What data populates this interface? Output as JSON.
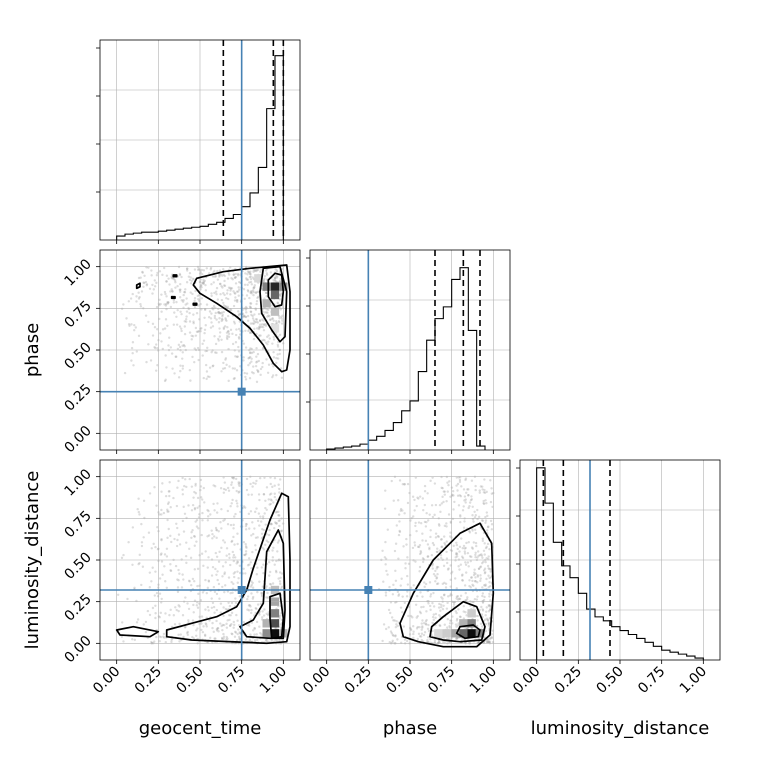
{
  "chart_data": {
    "type": "corner",
    "parameters": [
      "geocent_time",
      "phase",
      "luminosity_distance"
    ],
    "axis_range": [
      -0.1,
      1.1
    ],
    "ticks": [
      "0.00",
      "0.25",
      "0.50",
      "0.75",
      "1.00"
    ],
    "truths": {
      "geocent_time": 0.75,
      "phase": 0.25,
      "luminosity_distance": 0.32
    },
    "colors": {
      "truth": "#4682b4",
      "contour": "#000000",
      "grid": "#b0b0b0",
      "points": "#9e9e9e"
    },
    "grid": true,
    "diagonal": [
      {
        "parameter": "geocent_time",
        "bin_edges": [
          0.0,
          0.05,
          0.1,
          0.15,
          0.2,
          0.25,
          0.3,
          0.35,
          0.4,
          0.45,
          0.5,
          0.55,
          0.6,
          0.65,
          0.7,
          0.75,
          0.8,
          0.85,
          0.9,
          0.95,
          1.0
        ],
        "counts": [
          0.02,
          0.03,
          0.035,
          0.04,
          0.04,
          0.045,
          0.05,
          0.055,
          0.06,
          0.065,
          0.07,
          0.08,
          0.09,
          0.11,
          0.13,
          0.17,
          0.24,
          0.37,
          0.67,
          0.94
        ],
        "ylim": [
          0,
          1.0
        ],
        "quantiles": [
          0.64,
          0.94,
          1.0
        ]
      },
      {
        "parameter": "phase",
        "bin_edges": [
          0.0,
          0.05,
          0.1,
          0.15,
          0.2,
          0.25,
          0.3,
          0.35,
          0.4,
          0.45,
          0.5,
          0.55,
          0.6,
          0.65,
          0.7,
          0.75,
          0.8,
          0.85,
          0.9,
          0.95
        ],
        "counts": [
          0.005,
          0.01,
          0.015,
          0.02,
          0.03,
          0.05,
          0.07,
          0.1,
          0.14,
          0.2,
          0.25,
          0.4,
          0.56,
          0.67,
          0.73,
          0.87,
          0.93,
          0.61,
          0.02
        ],
        "ylim": [
          0,
          1.0
        ],
        "quantiles": [
          0.65,
          0.82,
          0.92
        ]
      },
      {
        "parameter": "luminosity_distance",
        "bin_edges": [
          0.0,
          0.05,
          0.1,
          0.15,
          0.2,
          0.25,
          0.3,
          0.35,
          0.4,
          0.45,
          0.5,
          0.55,
          0.6,
          0.65,
          0.7,
          0.75,
          0.8,
          0.85,
          0.9,
          0.95,
          1.0
        ],
        "counts": [
          0.98,
          0.8,
          0.6,
          0.48,
          0.42,
          0.34,
          0.26,
          0.22,
          0.2,
          0.17,
          0.15,
          0.13,
          0.11,
          0.09,
          0.07,
          0.05,
          0.04,
          0.03,
          0.02,
          0.01
        ],
        "ylim": [
          0,
          1.0
        ],
        "quantiles": [
          0.04,
          0.16,
          0.44
        ]
      }
    ],
    "scatter_panels": [
      {
        "x": "geocent_time",
        "y": "phase",
        "density_blocks": [
          {
            "x": 0.95,
            "y": 0.88,
            "level": 0.85
          },
          {
            "x": 0.95,
            "y": 0.83,
            "level": 0.6
          },
          {
            "x": 0.9,
            "y": 0.88,
            "level": 0.5
          },
          {
            "x": 1.0,
            "y": 0.88,
            "level": 0.45
          },
          {
            "x": 0.9,
            "y": 0.78,
            "level": 0.3
          },
          {
            "x": 0.95,
            "y": 0.73,
            "level": 0.25
          },
          {
            "x": 0.85,
            "y": 0.93,
            "level": 0.15
          },
          {
            "x": 0.95,
            "y": 0.63,
            "level": 0.12
          }
        ],
        "contours": [
          [
            [
              0.95,
              0.96
            ],
            [
              0.99,
              0.95
            ],
            [
              1.0,
              0.85
            ],
            [
              0.99,
              0.77
            ],
            [
              0.95,
              0.76
            ],
            [
              0.91,
              0.82
            ],
            [
              0.91,
              0.92
            ]
          ],
          [
            [
              0.88,
              0.99
            ],
            [
              0.98,
              1.0
            ],
            [
              1.02,
              0.85
            ],
            [
              1.01,
              0.58
            ],
            [
              0.98,
              0.55
            ],
            [
              0.93,
              0.62
            ],
            [
              0.87,
              0.72
            ],
            [
              0.86,
              0.85
            ]
          ],
          [
            [
              0.48,
              0.93
            ],
            [
              0.64,
              0.97
            ],
            [
              0.8,
              0.99
            ],
            [
              1.02,
              1.01
            ],
            [
              1.04,
              0.85
            ],
            [
              1.04,
              0.5
            ],
            [
              1.02,
              0.38
            ],
            [
              0.99,
              0.37
            ],
            [
              0.94,
              0.42
            ],
            [
              0.88,
              0.53
            ],
            [
              0.8,
              0.63
            ],
            [
              0.72,
              0.7
            ],
            [
              0.6,
              0.78
            ],
            [
              0.5,
              0.84
            ],
            [
              0.46,
              0.89
            ]
          ],
          [
            [
              0.12,
              0.89
            ],
            [
              0.14,
              0.9
            ],
            [
              0.14,
              0.88
            ],
            [
              0.12,
              0.87
            ]
          ],
          [
            [
              0.34,
              0.95
            ],
            [
              0.36,
              0.95
            ],
            [
              0.36,
              0.94
            ],
            [
              0.34,
              0.94
            ]
          ],
          [
            [
              0.33,
              0.82
            ],
            [
              0.35,
              0.82
            ],
            [
              0.35,
              0.81
            ],
            [
              0.33,
              0.81
            ]
          ],
          [
            [
              0.46,
              0.78
            ],
            [
              0.48,
              0.78
            ],
            [
              0.48,
              0.77
            ],
            [
              0.46,
              0.77
            ]
          ]
        ],
        "scatter_region": {
          "x": [
            0.0,
            1.0
          ],
          "y": [
            0.3,
            1.0
          ]
        }
      },
      {
        "x": "geocent_time",
        "y": "luminosity_distance",
        "density_blocks": [
          {
            "x": 0.95,
            "y": 0.06,
            "level": 0.95
          },
          {
            "x": 0.95,
            "y": 0.12,
            "level": 0.7
          },
          {
            "x": 0.95,
            "y": 0.18,
            "level": 0.5
          },
          {
            "x": 0.9,
            "y": 0.06,
            "level": 0.45
          },
          {
            "x": 0.95,
            "y": 0.25,
            "level": 0.35
          },
          {
            "x": 0.95,
            "y": 0.32,
            "level": 0.25
          },
          {
            "x": 0.9,
            "y": 0.12,
            "level": 0.3
          },
          {
            "x": 1.0,
            "y": 0.06,
            "level": 0.3
          }
        ],
        "contours": [
          [
            [
              0.92,
              0.28
            ],
            [
              0.98,
              0.3
            ],
            [
              1.0,
              0.15
            ],
            [
              0.99,
              0.04
            ],
            [
              0.93,
              0.03
            ],
            [
              0.92,
              0.15
            ]
          ],
          [
            [
              0.9,
              0.55
            ],
            [
              0.97,
              0.68
            ],
            [
              1.0,
              0.6
            ],
            [
              1.01,
              0.2
            ],
            [
              1.0,
              0.03
            ],
            [
              0.92,
              0.03
            ],
            [
              0.78,
              0.04
            ],
            [
              0.74,
              0.1
            ],
            [
              0.82,
              0.14
            ],
            [
              0.88,
              0.24
            ]
          ],
          [
            [
              0.82,
              0.45
            ],
            [
              0.92,
              0.74
            ],
            [
              0.99,
              0.9
            ],
            [
              1.03,
              0.88
            ],
            [
              1.04,
              0.5
            ],
            [
              1.04,
              0.1
            ],
            [
              1.02,
              0.01
            ],
            [
              0.9,
              0.0
            ],
            [
              0.45,
              0.02
            ],
            [
              0.3,
              0.04
            ],
            [
              0.3,
              0.08
            ],
            [
              0.45,
              0.12
            ],
            [
              0.6,
              0.16
            ],
            [
              0.72,
              0.22
            ],
            [
              0.78,
              0.32
            ]
          ],
          [
            [
              0.0,
              0.08
            ],
            [
              0.1,
              0.1
            ],
            [
              0.25,
              0.07
            ],
            [
              0.2,
              0.04
            ],
            [
              0.02,
              0.05
            ]
          ]
        ],
        "scatter_region": {
          "x": [
            0.0,
            1.0
          ],
          "y": [
            0.0,
            1.0
          ]
        }
      },
      {
        "x": "phase",
        "y": "luminosity_distance",
        "density_blocks": [
          {
            "x": 0.87,
            "y": 0.06,
            "level": 0.95
          },
          {
            "x": 0.82,
            "y": 0.06,
            "level": 0.6
          },
          {
            "x": 0.92,
            "y": 0.06,
            "level": 0.5
          },
          {
            "x": 0.87,
            "y": 0.12,
            "level": 0.5
          },
          {
            "x": 0.77,
            "y": 0.06,
            "level": 0.35
          },
          {
            "x": 0.82,
            "y": 0.12,
            "level": 0.3
          },
          {
            "x": 0.72,
            "y": 0.06,
            "level": 0.2
          },
          {
            "x": 0.87,
            "y": 0.18,
            "level": 0.2
          },
          {
            "x": 0.67,
            "y": 0.06,
            "level": 0.15
          }
        ],
        "contours": [
          [
            [
              0.8,
              0.1
            ],
            [
              0.88,
              0.11
            ],
            [
              0.92,
              0.08
            ],
            [
              0.91,
              0.04
            ],
            [
              0.83,
              0.03
            ],
            [
              0.78,
              0.06
            ]
          ],
          [
            [
              0.7,
              0.16
            ],
            [
              0.82,
              0.25
            ],
            [
              0.9,
              0.22
            ],
            [
              0.95,
              0.1
            ],
            [
              0.93,
              0.02
            ],
            [
              0.8,
              0.01
            ],
            [
              0.7,
              0.02
            ],
            [
              0.62,
              0.04
            ],
            [
              0.63,
              0.1
            ]
          ],
          [
            [
              0.52,
              0.3
            ],
            [
              0.64,
              0.5
            ],
            [
              0.8,
              0.66
            ],
            [
              0.92,
              0.72
            ],
            [
              0.99,
              0.6
            ],
            [
              1.0,
              0.3
            ],
            [
              0.98,
              0.05
            ],
            [
              0.9,
              -0.02
            ],
            [
              0.7,
              -0.02
            ],
            [
              0.55,
              0.01
            ],
            [
              0.46,
              0.04
            ],
            [
              0.44,
              0.12
            ]
          ]
        ],
        "scatter_region": {
          "x": [
            0.3,
            1.0
          ],
          "y": [
            0.0,
            1.0
          ]
        }
      }
    ]
  }
}
